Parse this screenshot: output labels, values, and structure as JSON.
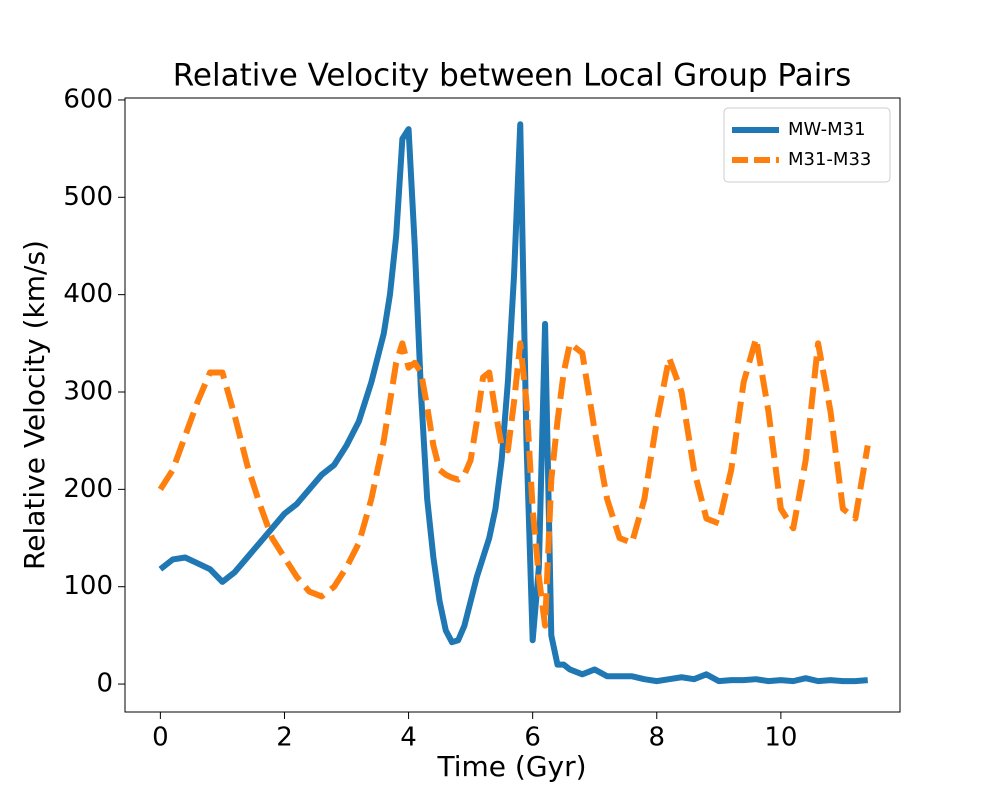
{
  "chart_data": {
    "type": "line",
    "title": "Relative Velocity between Local Group Pairs",
    "xlabel": "Time (Gyr)",
    "ylabel": "Relative Velocity (km/s)",
    "x": [
      0,
      0.2,
      0.4,
      0.6,
      0.8,
      1.0,
      1.2,
      1.4,
      1.6,
      1.8,
      2.0,
      2.2,
      2.4,
      2.6,
      2.8,
      3.0,
      3.2,
      3.4,
      3.6,
      3.7,
      3.8,
      3.9,
      4.0,
      4.1,
      4.2,
      4.3,
      4.4,
      4.5,
      4.6,
      4.7,
      4.8,
      4.9,
      5.0,
      5.1,
      5.2,
      5.3,
      5.4,
      5.5,
      5.6,
      5.7,
      5.8,
      5.9,
      6.0,
      6.1,
      6.2,
      6.3,
      6.4,
      6.5,
      6.6,
      6.8,
      7.0,
      7.2,
      7.4,
      7.6,
      7.8,
      8.0,
      8.2,
      8.4,
      8.6,
      8.8,
      9.0,
      9.2,
      9.4,
      9.6,
      9.8,
      10.0,
      10.2,
      10.4,
      10.6,
      10.8,
      11.0,
      11.2,
      11.4
    ],
    "series": [
      {
        "name": "MW-M31",
        "color": "#1f77b4",
        "linestyle": "solid",
        "values": [
          118,
          128,
          130,
          124,
          118,
          105,
          115,
          130,
          145,
          160,
          175,
          185,
          200,
          215,
          225,
          245,
          270,
          310,
          360,
          400,
          460,
          560,
          570,
          450,
          300,
          190,
          130,
          85,
          55,
          43,
          45,
          60,
          85,
          110,
          130,
          150,
          180,
          230,
          310,
          420,
          575,
          250,
          45,
          120,
          370,
          50,
          20,
          20,
          15,
          10,
          15,
          8,
          8,
          8,
          5,
          3,
          5,
          7,
          5,
          10,
          3,
          4,
          4,
          5,
          3,
          4,
          3,
          6,
          3,
          4,
          3,
          3,
          4
        ]
      },
      {
        "name": "M31-M33",
        "color": "#ff7f0e",
        "linestyle": "dashed",
        "values": [
          200,
          220,
          255,
          290,
          320,
          320,
          275,
          225,
          185,
          150,
          130,
          110,
          95,
          90,
          100,
          120,
          145,
          190,
          250,
          290,
          330,
          350,
          325,
          330,
          320,
          285,
          245,
          220,
          215,
          212,
          210,
          215,
          230,
          270,
          315,
          320,
          280,
          245,
          240,
          290,
          350,
          290,
          180,
          110,
          60,
          210,
          270,
          320,
          350,
          340,
          260,
          190,
          150,
          145,
          190,
          270,
          335,
          300,
          220,
          170,
          165,
          220,
          310,
          355,
          280,
          180,
          160,
          230,
          350,
          280,
          180,
          170,
          245
        ]
      }
    ],
    "xlim": [
      -0.57,
      11.92
    ],
    "xticks": [
      0,
      2,
      4,
      6,
      8,
      10
    ],
    "ylim": [
      -28.7,
      602
    ],
    "yticks": [
      0,
      100,
      200,
      300,
      400,
      500,
      600
    ],
    "legend": "upper right"
  }
}
